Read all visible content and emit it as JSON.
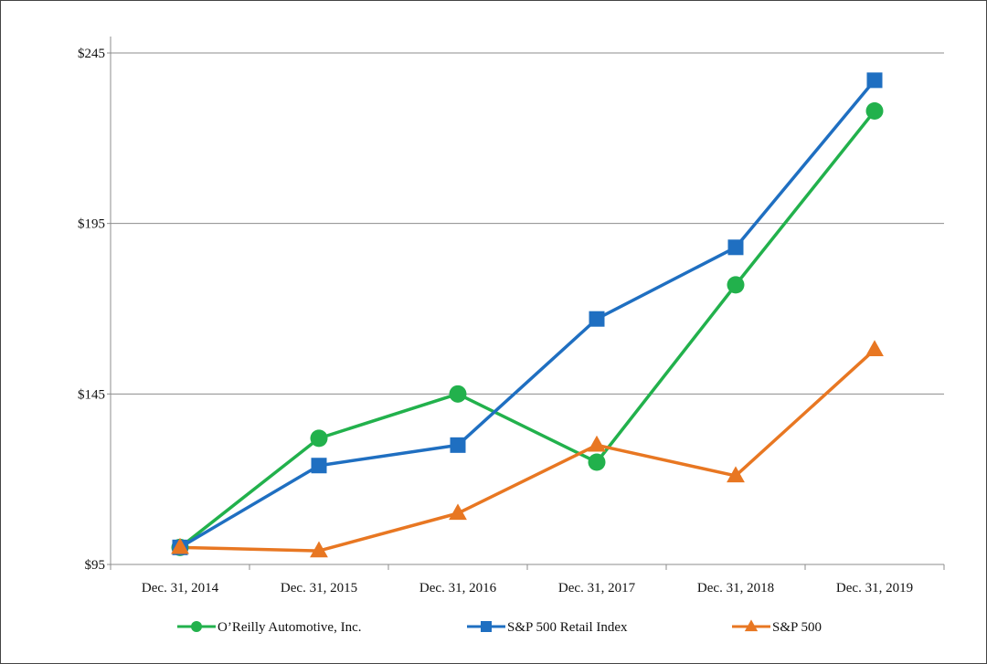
{
  "chart_data": {
    "type": "line",
    "categories": [
      "Dec. 31, 2014",
      "Dec. 31, 2015",
      "Dec. 31, 2016",
      "Dec. 31, 2017",
      "Dec. 31, 2018",
      "Dec. 31, 2019"
    ],
    "yticks": [
      "$95",
      "$145",
      "$195",
      "$245"
    ],
    "ytick_values": [
      95,
      145,
      195,
      245
    ],
    "ylim": [
      95,
      245
    ],
    "grid": true,
    "legend_position": "bottom",
    "series": [
      {
        "name": "O’Reilly Automotive, Inc.",
        "color": "#22b14c",
        "marker": "circle",
        "values": [
          100,
          132,
          145,
          125,
          177,
          228
        ]
      },
      {
        "name": "S&P 500 Retail Index",
        "color": "#1f6fc1",
        "marker": "square",
        "values": [
          100,
          124,
          130,
          167,
          188,
          237
        ]
      },
      {
        "name": "S&P 500",
        "color": "#e87722",
        "marker": "triangle",
        "values": [
          100,
          99,
          110,
          130,
          121,
          158
        ]
      }
    ]
  }
}
